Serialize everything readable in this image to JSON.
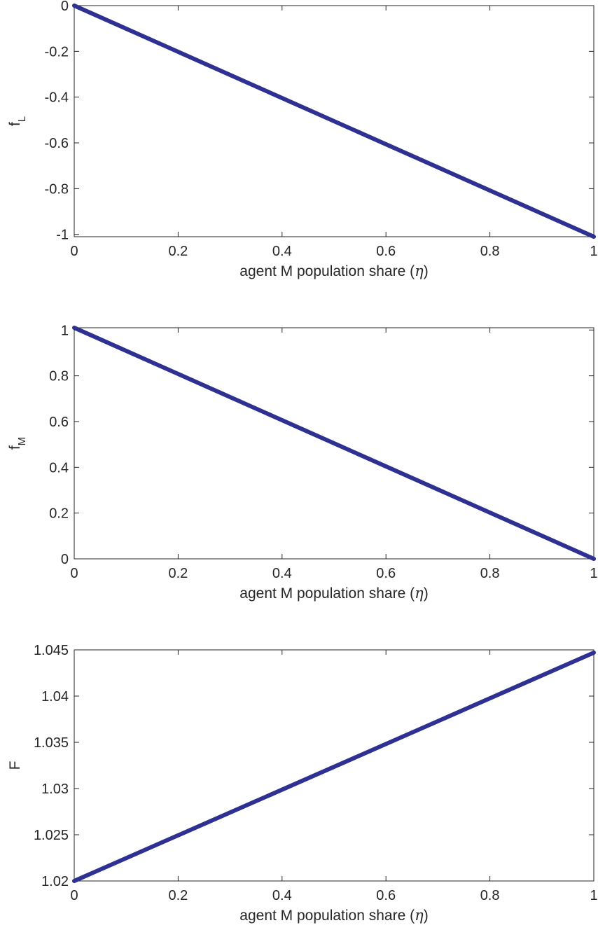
{
  "chart_data": [
    {
      "type": "line",
      "xlabel_text": "agent M population share (",
      "xlabel_symbol": "η",
      "xlabel_close": ")",
      "ylabel_main": "f",
      "ylabel_sub": "L",
      "xlim": [
        0,
        1
      ],
      "ylim": [
        -1.01,
        0
      ],
      "xticks": [
        0,
        0.2,
        0.4,
        0.6,
        0.8,
        1
      ],
      "xtick_labels": [
        "0",
        "0.2",
        "0.4",
        "0.6",
        "0.8",
        "1"
      ],
      "yticks": [
        0,
        -0.2,
        -0.4,
        -0.6,
        -0.8,
        -1
      ],
      "ytick_labels": [
        "0",
        "-0.2",
        "-0.4",
        "-0.6",
        "-0.8",
        "-1"
      ],
      "series": [
        {
          "x": [
            0,
            1
          ],
          "y": [
            0,
            -1.01
          ]
        }
      ],
      "line_color": "#2e3192",
      "grid": false
    },
    {
      "type": "line",
      "xlabel_text": "agent M population share (",
      "xlabel_symbol": "η",
      "xlabel_close": ")",
      "ylabel_main": "f",
      "ylabel_sub": "M",
      "xlim": [
        0,
        1
      ],
      "ylim": [
        0,
        1.01
      ],
      "xticks": [
        0,
        0.2,
        0.4,
        0.6,
        0.8,
        1
      ],
      "xtick_labels": [
        "0",
        "0.2",
        "0.4",
        "0.6",
        "0.8",
        "1"
      ],
      "yticks": [
        0,
        0.2,
        0.4,
        0.6,
        0.8,
        1
      ],
      "ytick_labels": [
        "0",
        "0.2",
        "0.4",
        "0.6",
        "0.8",
        "1"
      ],
      "series": [
        {
          "x": [
            0,
            1
          ],
          "y": [
            1.01,
            0
          ]
        }
      ],
      "line_color": "#2e3192",
      "grid": false
    },
    {
      "type": "line",
      "xlabel_text": "agent M population share (",
      "xlabel_symbol": "η",
      "xlabel_close": ")",
      "ylabel_main": "F",
      "ylabel_sub": "",
      "xlim": [
        0,
        1
      ],
      "ylim": [
        1.02,
        1.045
      ],
      "xticks": [
        0,
        0.2,
        0.4,
        0.6,
        0.8,
        1
      ],
      "xtick_labels": [
        "0",
        "0.2",
        "0.4",
        "0.6",
        "0.8",
        "1"
      ],
      "yticks": [
        1.02,
        1.025,
        1.03,
        1.035,
        1.04,
        1.045
      ],
      "ytick_labels": [
        "1.02",
        "1.025",
        "1.03",
        "1.035",
        "1.04",
        "1.045"
      ],
      "series": [
        {
          "x": [
            0,
            1
          ],
          "y": [
            1.02,
            1.0447
          ]
        }
      ],
      "line_color": "#2e3192",
      "grid": false
    }
  ]
}
